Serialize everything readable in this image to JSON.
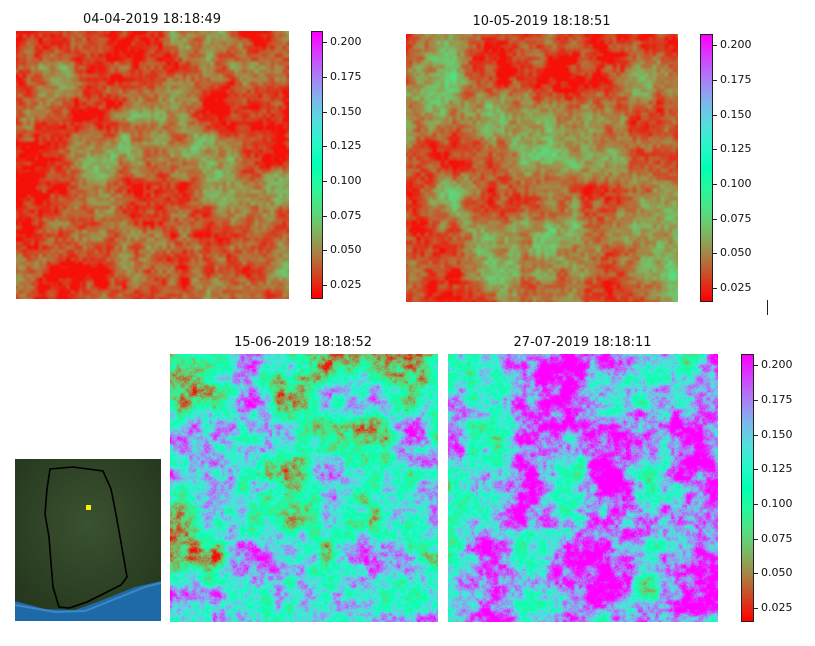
{
  "panels": [
    {
      "id": "p1",
      "title": "04-04-2019 18:18:49",
      "date_label": "04-04-2019",
      "time_label": "18:18:49",
      "dominant": "red-orange",
      "mean_value": 0.04
    },
    {
      "id": "p2",
      "title": "10-05-2019 18:18:51",
      "date_label": "10-05-2019",
      "time_label": "18:18:51",
      "dominant": "red-orange",
      "mean_value": 0.045
    },
    {
      "id": "p3",
      "title": "15-06-2019 18:18:52",
      "date_label": "15-06-2019",
      "time_label": "18:18:52",
      "dominant": "green-blue-mix",
      "mean_value": 0.12
    },
    {
      "id": "p4",
      "title": "27-07-2019 18:18:11",
      "date_label": "27-07-2019",
      "time_label": "18:18:11",
      "dominant": "blue-violet",
      "mean_value": 0.16
    }
  ],
  "colorbar": {
    "ticks": [
      "0.200",
      "0.175",
      "0.150",
      "0.125",
      "0.100",
      "0.075",
      "0.050",
      "0.025"
    ],
    "min": 0.015,
    "max": 0.208,
    "colormap": "rainbow_r",
    "colors": [
      "#ff0000",
      "#ff7f3f",
      "#ffbe5f",
      "#d5e27f",
      "#7fffa0",
      "#2adddd",
      "#2a8ef0",
      "#7f00ff"
    ]
  },
  "inset_map": {
    "description_color_land": "#2f4424",
    "ocean_color": "#1e6aa8",
    "outline_color": "#000000",
    "marker_color": "#ffee00"
  }
}
